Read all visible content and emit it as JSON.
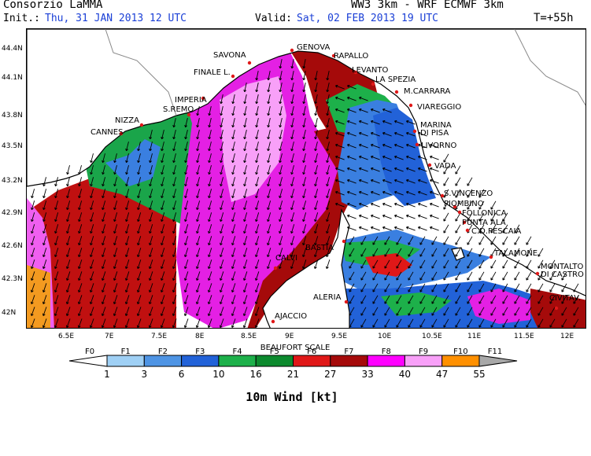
{
  "header": {
    "org": "Consorzio LaMMA",
    "model": "WW3 3km - WRF ECMWF 3km",
    "init_label": "Init.:",
    "init_value": "Thu, 31 JAN 2013   12 UTC",
    "valid_label": "Valid:",
    "valid_value": "Sat, 02 FEB 2013   19 UTC",
    "lead": "T=+55h"
  },
  "axes": {
    "lat_ticks": [
      "44.4N",
      "44.1N",
      "43.8N",
      "43.5N",
      "43.2N",
      "42.9N",
      "42.6N",
      "42.3N",
      "42N"
    ],
    "lon_ticks": [
      "6.5E",
      "7E",
      "7.5E",
      "8E",
      "8.5E",
      "9E",
      "9.5E",
      "10E",
      "10.5E",
      "11E",
      "11.5E",
      "12E"
    ]
  },
  "places": [
    "GENOVA",
    "SAVONA",
    "RAPALLO",
    "LEVANTO",
    "FINALE L.",
    "LA SPEZIA",
    "M.CARRARA",
    "IMPERIA",
    "S.REMO",
    "VIAREGGIO",
    "NIZZA",
    "CANNES",
    "MARINA",
    "DI PISA",
    "LIVORNO",
    "VADA",
    "S.VINCENZO",
    "PIOMBINO",
    "FOLLONICA",
    "PUNTA ALA",
    "C.D.PESCAIA",
    "BASTIA",
    "CALVI",
    "TALAMONE",
    "MONTALTO",
    "DI CASTRO",
    "ALERIA",
    "CIVITAV.",
    "AJACCIO"
  ],
  "colorbar": {
    "title": "BEAUFORT SCALE",
    "forces": [
      "F0",
      "F1",
      "F2",
      "F3",
      "F4",
      "F5",
      "F6",
      "F7",
      "F8",
      "F9",
      "F10",
      "F11"
    ],
    "thresholds": [
      "1",
      "3",
      "6",
      "10",
      "16",
      "21",
      "27",
      "33",
      "40",
      "47",
      "55"
    ],
    "colors": [
      "#ffffff",
      "#9fd0f5",
      "#4e94e4",
      "#2262d8",
      "#1db04a",
      "#0c8a2e",
      "#e01818",
      "#a50a0a",
      "#ff00ff",
      "#f8a0f8",
      "#ff9000",
      "#a8a8a8"
    ],
    "units_label": "10m Wind [kt]"
  }
}
